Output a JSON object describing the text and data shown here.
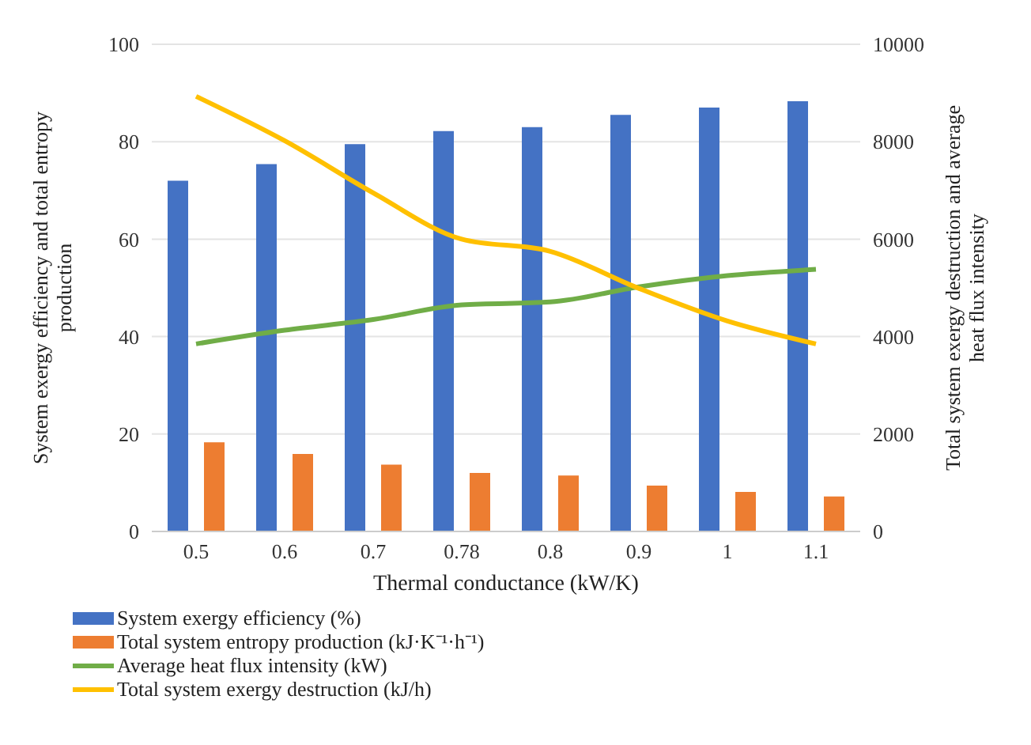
{
  "chart_data": {
    "type": "bar",
    "categories": [
      "0.5",
      "0.6",
      "0.7",
      "0.78",
      "0.8",
      "0.9",
      "1",
      "1.1"
    ],
    "xlabel": "Thermal conductance (kW/K)",
    "ylabel": "System exergy efficiency and total entropy production",
    "y2label": "Total system exergy destruction and average heat flux intensity",
    "ylim": [
      0,
      100
    ],
    "yticks": [
      0,
      20,
      40,
      60,
      80,
      100
    ],
    "y2lim": [
      0,
      10000
    ],
    "y2ticks": [
      0,
      2000,
      4000,
      6000,
      8000,
      10000
    ],
    "grid": "y",
    "legend": "bottom",
    "series": [
      {
        "name": "System exergy efficiency (%)",
        "color": "#4472c4",
        "values": [
          72.0,
          75.4,
          79.5,
          82.2,
          83.0,
          85.5,
          87.0,
          88.3
        ]
      },
      {
        "name": "Total system entropy production (kJ·K⁻¹·h⁻¹)",
        "color": "#ed7d31",
        "values": [
          18.3,
          15.9,
          13.7,
          12.0,
          11.5,
          9.4,
          8.1,
          7.2
        ]
      },
      {
        "name": "Average heat flux intensity (kW)",
        "type": "line",
        "axis": "y2",
        "color": "#70ad47",
        "values": [
          3850,
          4130,
          4350,
          4650,
          4710,
          5020,
          5250,
          5380
        ]
      },
      {
        "name": "Total system exergy destruction (kJ/h)",
        "type": "line",
        "axis": "y2",
        "color": "#ffc000",
        "values": [
          8930,
          8020,
          6950,
          6000,
          5750,
          4990,
          4320,
          3850
        ]
      }
    ]
  }
}
